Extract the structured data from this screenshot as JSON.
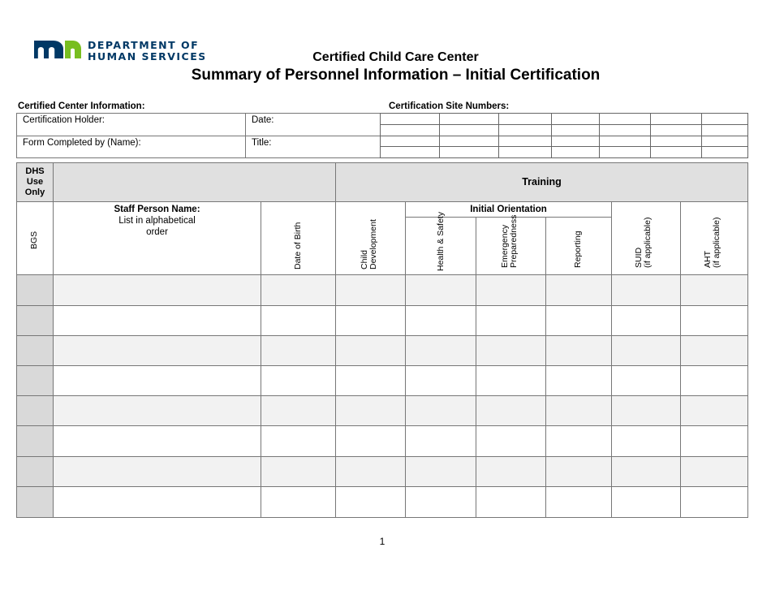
{
  "logo": {
    "text_line1": "DEPARTMENT OF",
    "text_line2": "HUMAN SERVICES",
    "colors": {
      "m": "#003865",
      "n": "#78be20"
    }
  },
  "title": "Certified Child Care Center",
  "subtitle": "Summary of Personnel Information – Initial Certification",
  "center_info": {
    "heading": "Certified Center Information:",
    "holder": "Certification Holder:",
    "date": "Date:",
    "completed_by": "Form Completed by (Name):",
    "title": "Title:"
  },
  "site_numbers": {
    "heading": "Certification Site Numbers:"
  },
  "table": {
    "dhs": "DHS Use Only",
    "training": "Training",
    "bgs": "BGS",
    "staff_name": "Staff Person Name:",
    "staff_note_1": "List in alphabetical",
    "staff_note_2": "order",
    "dob": "Date of Birth",
    "child_dev_1": "Child",
    "child_dev_2": "Development",
    "initial_orientation": "Initial Orientation",
    "health": "Health & Safety",
    "emerg_1": "Emergency",
    "emerg_2": "Preparedness",
    "reporting": "Reporting",
    "suid_1": "SUID",
    "suid_2": "(if applicable)",
    "aht_1": "AHT",
    "aht_2": "(if applicable)",
    "row_count": 8
  },
  "page_number": "1"
}
